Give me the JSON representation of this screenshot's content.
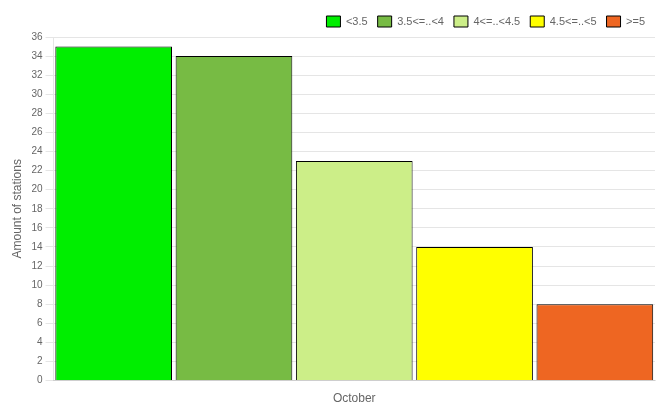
{
  "chart_data": {
    "type": "bar",
    "categories": [
      "October"
    ],
    "series": [
      {
        "name": "<3.5",
        "color": "#00ee00",
        "values": [
          35
        ]
      },
      {
        "name": "3.5<=..<4",
        "color": "#77bb44",
        "values": [
          34
        ]
      },
      {
        "name": "4<=..<4.5",
        "color": "#ccee88",
        "values": [
          23
        ]
      },
      {
        "name": "4.5<=..<5",
        "color": "#ffff00",
        "values": [
          14
        ]
      },
      {
        "name": ">=5",
        "color": "#ee6622",
        "values": [
          8
        ]
      }
    ],
    "ylabel": "Amount of stations",
    "ylim": [
      0,
      36
    ],
    "yticks": [
      0,
      2,
      4,
      6,
      8,
      10,
      12,
      14,
      16,
      18,
      20,
      22,
      24,
      26,
      28,
      30,
      32,
      34,
      36
    ],
    "grid": true,
    "legend": "upper right"
  }
}
